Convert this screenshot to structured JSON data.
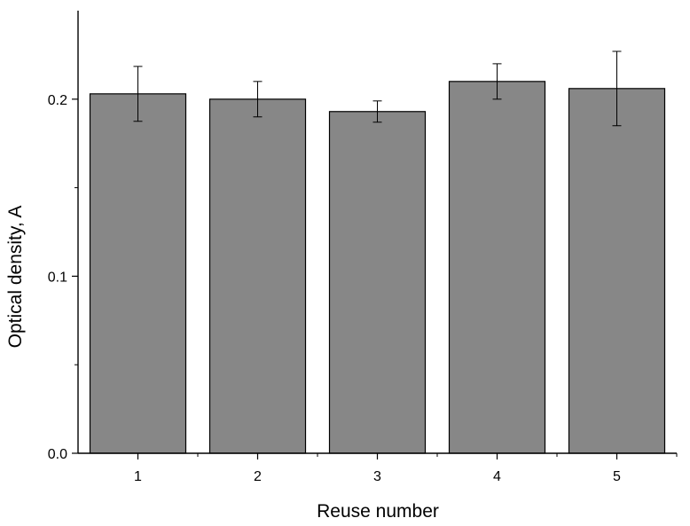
{
  "chart_data": {
    "type": "bar",
    "title": "",
    "xlabel": "Reuse number",
    "ylabel": "Optical density, A",
    "categories": [
      "1",
      "2",
      "3",
      "4",
      "5"
    ],
    "values": [
      0.203,
      0.2,
      0.193,
      0.21,
      0.206
    ],
    "errors": [
      0.0155,
      0.01,
      0.006,
      0.01,
      0.021
    ],
    "ylim": [
      0,
      0.25
    ],
    "yticks": [
      "0.0",
      "0.1",
      "0.2"
    ],
    "ytick_values": [
      0,
      0.1,
      0.2
    ],
    "y_minor_tick_values": [
      0.05,
      0.15
    ],
    "grid": false,
    "legend": "none",
    "bar_color": "#878787",
    "bar_edge_color": "#000000",
    "error_bar_color": "#000000"
  }
}
